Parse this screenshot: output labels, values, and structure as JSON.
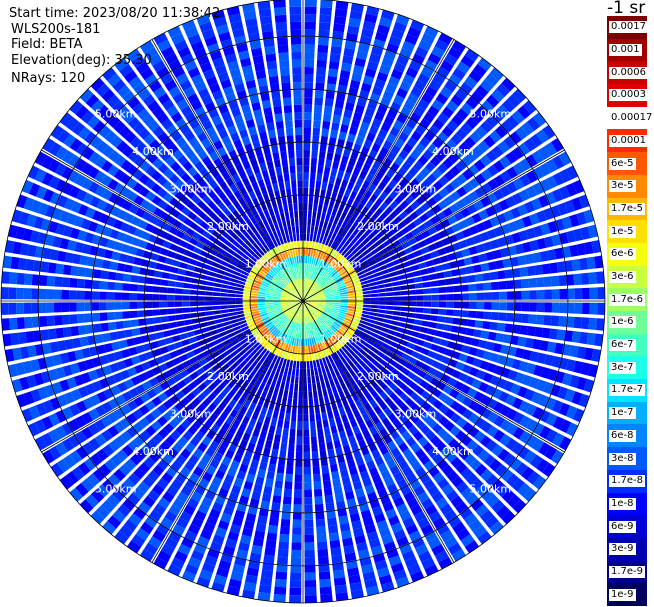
{
  "info": {
    "start_time": "Start time: 2023/08/20 11:38:42",
    "site": "WLS200s-181",
    "field": "Field: BETA",
    "elevation": "Elevation(deg): 35.30",
    "nrays": "NRays: 120"
  },
  "unit_label": "-1 sr",
  "chart_data": {
    "type": "heatmap",
    "projection": "polar",
    "field": "BETA",
    "elevation_deg": 35.3,
    "n_rays": 120,
    "range_rings_km": [
      "1.00km",
      "2.00km",
      "3.00km",
      "4.00km",
      "5.00km"
    ],
    "range_ring_labels": [
      "1.00km",
      "2.00km",
      "3.00km",
      "4.00km",
      "5.00km"
    ],
    "max_range_km": 5.7,
    "colorbar": {
      "labels": [
        "0.0017",
        "0.001",
        "0.0006",
        "0.0003",
        "0.00017",
        "0.0001",
        "6e-5",
        "3e-5",
        "1.7e-5",
        "1e-5",
        "6e-6",
        "3e-6",
        "1.7e-6",
        "1e-6",
        "6e-7",
        "3e-7",
        "1.7e-7",
        "1e-7",
        "6e-8",
        "3e-8",
        "1.7e-8",
        "1e-8",
        "6e-9",
        "3e-9",
        "1.7e-9",
        "1e-9"
      ],
      "colors": [
        "#7a0000",
        "#a00000",
        "#c80000",
        "#e00000",
        "#ffffff",
        "#ff2a00",
        "#ff5800",
        "#ff8a00",
        "#ffb800",
        "#ffe000",
        "#f4ff10",
        "#c8ff3e",
        "#9cff6a",
        "#70ff96",
        "#44ffc2",
        "#1cffe8",
        "#00e4ff",
        "#00b0ff",
        "#0084ff",
        "#0058ff",
        "#002cff",
        "#0000ff",
        "#0000d8",
        "#0000b0",
        "#000088",
        "#000060"
      ]
    },
    "profile": [
      {
        "range_km": 0.0,
        "value": "3e-6"
      },
      {
        "range_km": 0.4,
        "value": "6e-7"
      },
      {
        "range_km": 0.65,
        "value": "1.7e-7"
      },
      {
        "range_km": 0.85,
        "value": "3e-5"
      },
      {
        "range_km": 0.95,
        "value": "6e-6"
      },
      {
        "range_km": 1.1,
        "value": "6e-9"
      },
      {
        "range_km": 2.0,
        "value": "1e-8"
      },
      {
        "range_km": 3.0,
        "value": "1.7e-8"
      },
      {
        "range_km": 5.7,
        "value": "3e-8"
      }
    ]
  }
}
